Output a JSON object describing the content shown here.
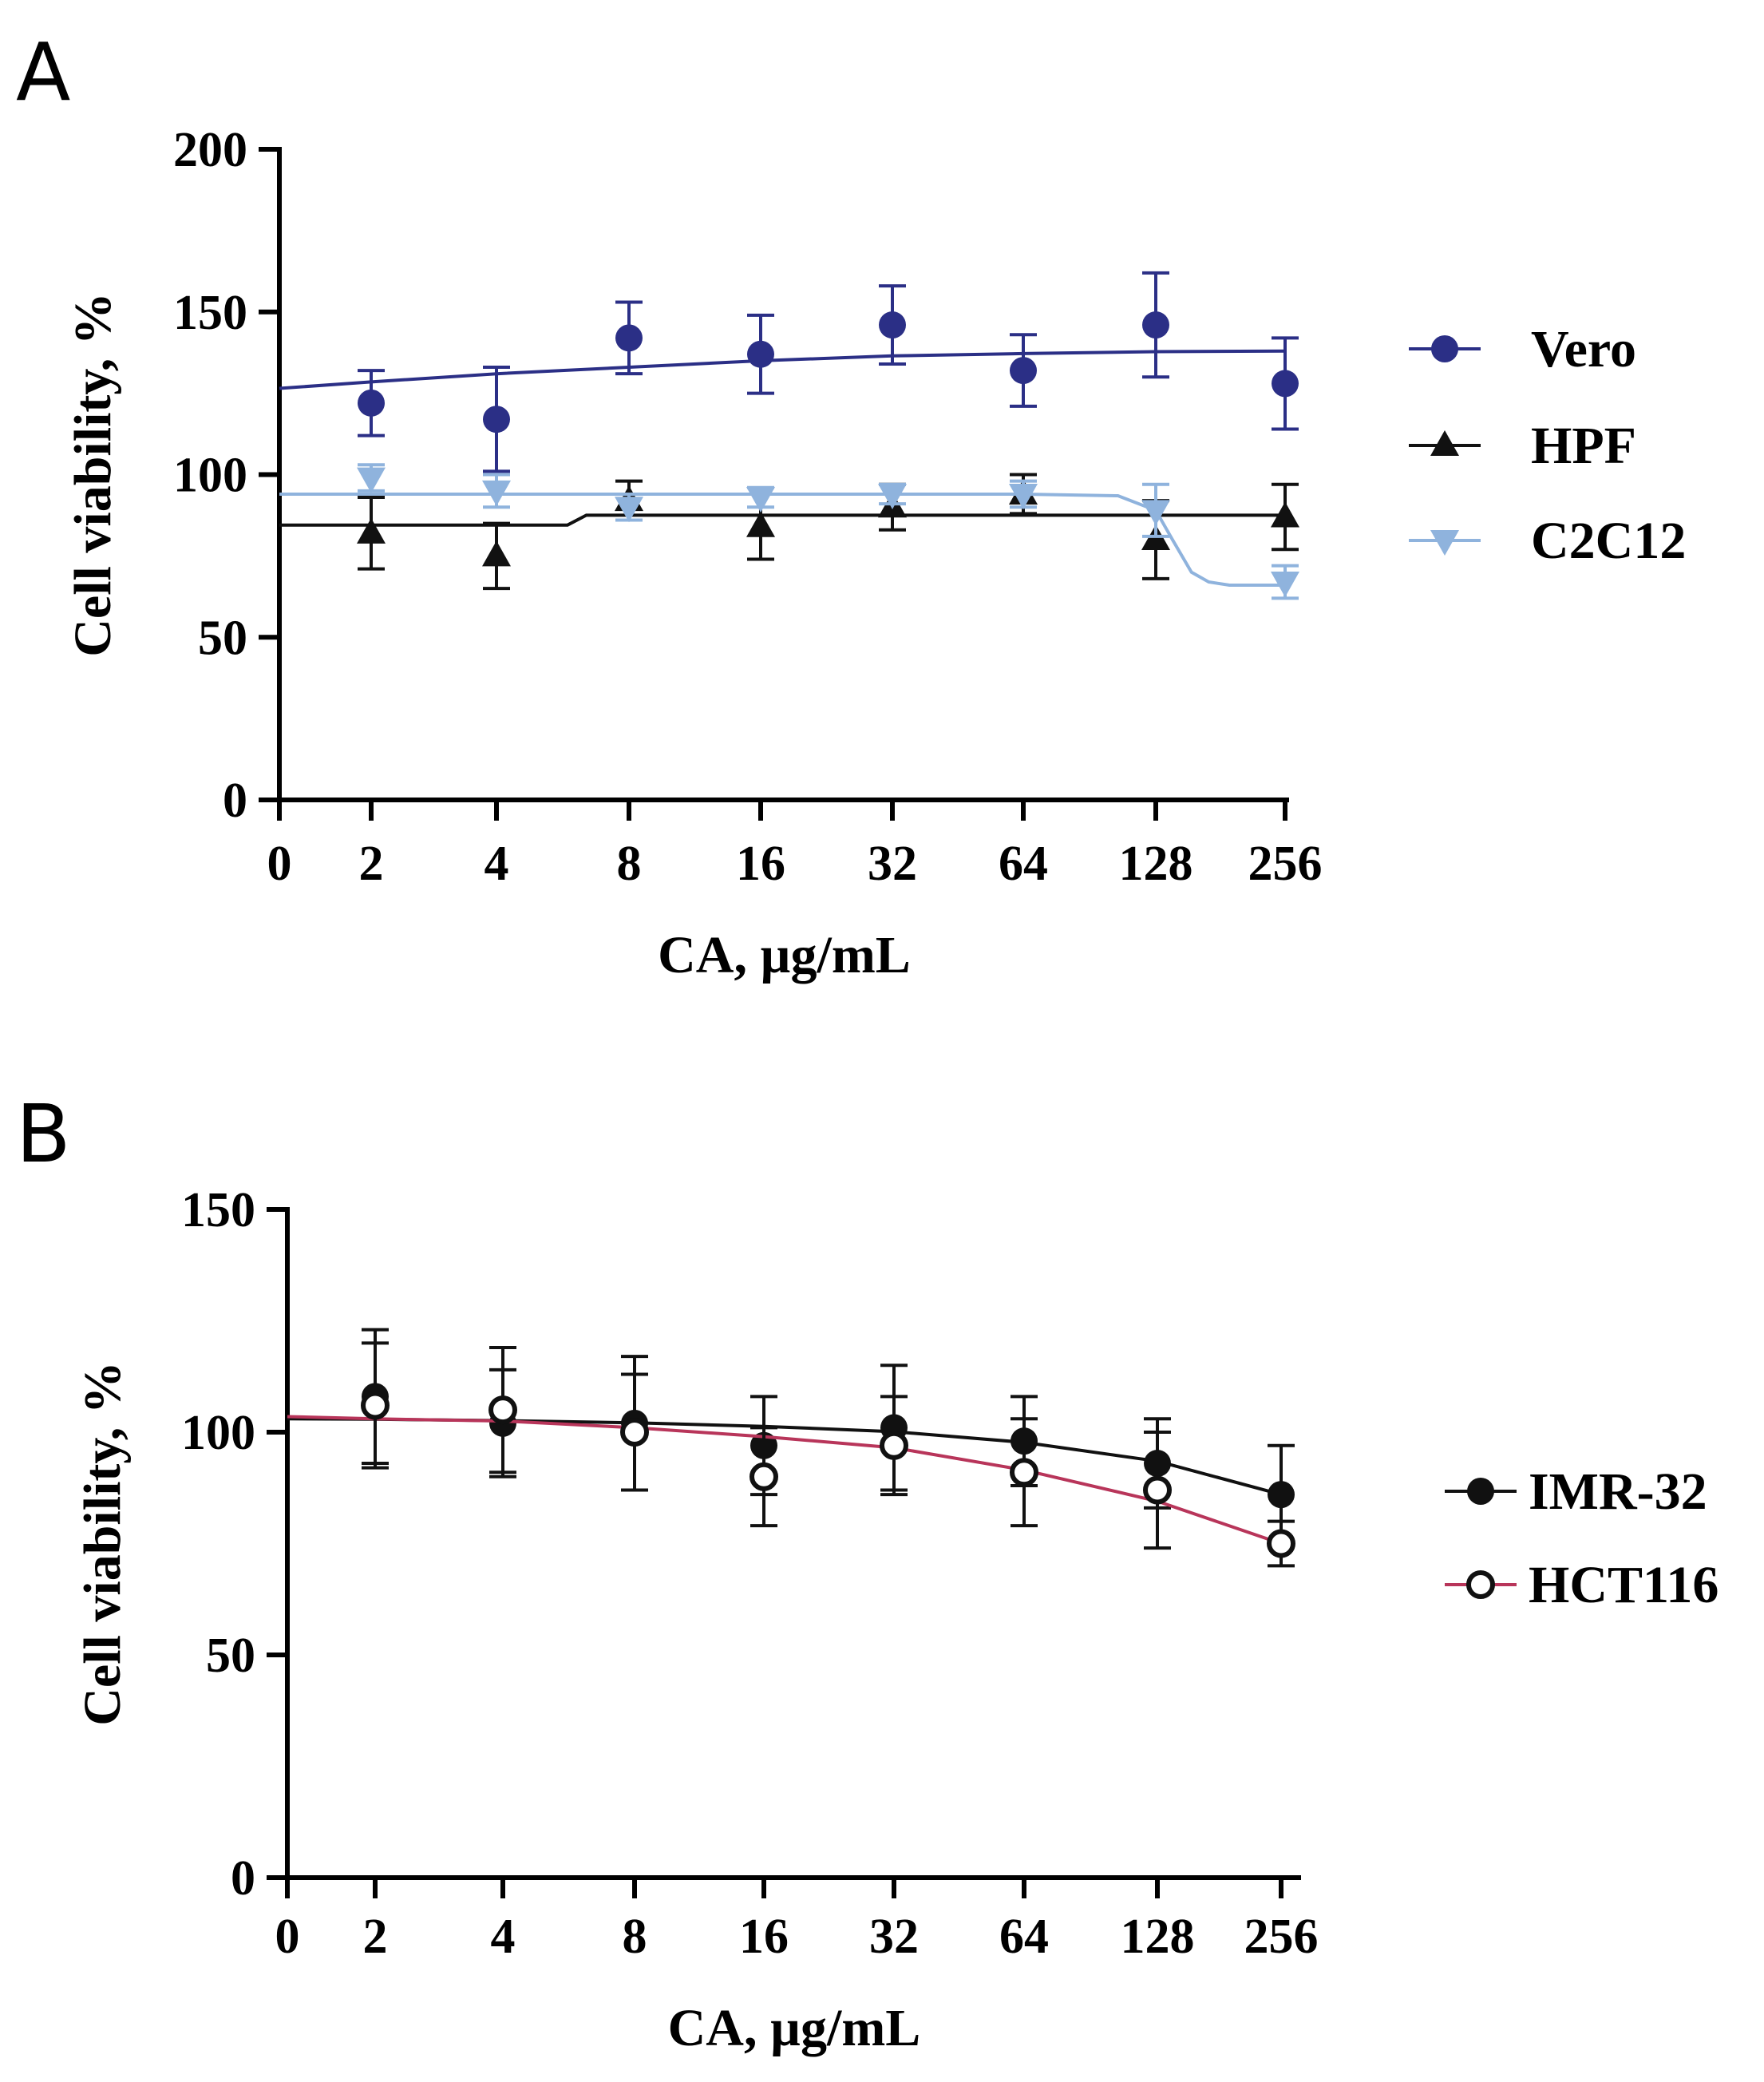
{
  "chart_data": [
    {
      "panel": "A",
      "type": "scatter",
      "xlabel": "CA, µg/mL",
      "ylabel": "Cell viability, %",
      "x_ticks": [
        "0",
        "2",
        "4",
        "8",
        "16",
        "32",
        "64",
        "128",
        "256"
      ],
      "y_ticks": [
        "0",
        "50",
        "100",
        "150",
        "200"
      ],
      "ylim": [
        0,
        200
      ],
      "legend_position": "right",
      "series": [
        {
          "name": "Vero",
          "color": "#2b2f86",
          "marker": "circle",
          "x": [
            2,
            4,
            8,
            16,
            32,
            64,
            128,
            256
          ],
          "values": [
            122,
            117,
            142,
            137,
            146,
            132,
            146,
            128
          ],
          "err": [
            10,
            16,
            11,
            12,
            12,
            11,
            16,
            14
          ],
          "fit_x": [
            0,
            2,
            4,
            8,
            16,
            32,
            64,
            128,
            256
          ],
          "fit_y": [
            126.5,
            128.5,
            131,
            133,
            135,
            136.5,
            137.2,
            137.8,
            138
          ]
        },
        {
          "name": "HPF",
          "color": "#111111",
          "marker": "triangle-up",
          "x": [
            2,
            4,
            8,
            16,
            32,
            64,
            128,
            256
          ],
          "values": [
            82,
            75,
            92,
            84,
            90,
            94,
            80,
            87
          ],
          "err": [
            11,
            10,
            6,
            10,
            7,
            6,
            12,
            10
          ],
          "fit_x": [
            0,
            2,
            4,
            5.8,
            6.4,
            8,
            16,
            32,
            64,
            128,
            256
          ],
          "fit_y": [
            84.5,
            84.5,
            84.5,
            84.5,
            87.5,
            87.5,
            87.5,
            87.5,
            87.5,
            87.5,
            87.5
          ],
          "fit_step": true
        },
        {
          "name": "C2C12",
          "color": "#8fb3dd",
          "marker": "triangle-down",
          "x": [
            2,
            4,
            8,
            16,
            32,
            64,
            128,
            256
          ],
          "values": [
            99,
            95,
            90,
            93,
            94,
            94,
            89,
            67
          ],
          "err": [
            4,
            5,
            4,
            3,
            3,
            4,
            8,
            5
          ],
          "fit_x": [
            0,
            2,
            4,
            8,
            16,
            32,
            64,
            105,
            128,
            140,
            155,
            170,
            190,
            256
          ],
          "fit_y": [
            94,
            94,
            94,
            94,
            94,
            94,
            94,
            93.5,
            89,
            80,
            70,
            67,
            66,
            66
          ]
        }
      ]
    },
    {
      "panel": "B",
      "type": "scatter",
      "xlabel": "CA, µg/mL",
      "ylabel": "Cell viability, %",
      "x_ticks": [
        "0",
        "2",
        "4",
        "8",
        "16",
        "32",
        "64",
        "128",
        "256"
      ],
      "y_ticks": [
        "0",
        "50",
        "100",
        "150"
      ],
      "ylim": [
        0,
        150
      ],
      "legend_position": "right",
      "series": [
        {
          "name": "IMR-32",
          "color": "#111111",
          "marker": "circle",
          "x": [
            2,
            4,
            8,
            16,
            32,
            64,
            128,
            256
          ],
          "values": [
            108,
            102,
            102,
            97,
            101,
            98,
            93,
            86
          ],
          "err": [
            15,
            12,
            15,
            11,
            14,
            10,
            10,
            11
          ],
          "fit_x": [
            0,
            2,
            4,
            8,
            16,
            32,
            64,
            128,
            256
          ],
          "fit_y": [
            103,
            102.9,
            102.6,
            102.1,
            101.3,
            100.1,
            97.7,
            93.5,
            86
          ]
        },
        {
          "name": "HCT116",
          "color": "#b8355a",
          "marker": "open-circle",
          "x": [
            2,
            4,
            8,
            16,
            32,
            64,
            128,
            256
          ],
          "values": [
            106,
            105,
            100,
            90,
            97,
            91,
            87,
            75
          ],
          "err": [
            14,
            14,
            13,
            11,
            11,
            12,
            13,
            5
          ],
          "fit_x": [
            0,
            2,
            4,
            8,
            16,
            32,
            64,
            128,
            256
          ],
          "fit_y": [
            103.5,
            103,
            102.5,
            101,
            99,
            96.5,
            91.5,
            84.5,
            75
          ]
        }
      ]
    }
  ],
  "panels": {
    "a_letter": "A",
    "b_letter": "B"
  }
}
